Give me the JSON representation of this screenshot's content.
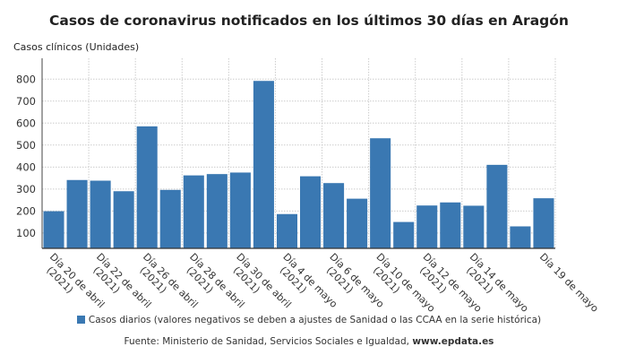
{
  "chart_data": {
    "type": "bar",
    "title": "Casos de coronavirus notificados en los últimos 30 días en Aragón",
    "ylabel": "Casos clínicos (Unidades)",
    "xlabel": "",
    "ylim": [
      30,
      895
    ],
    "yticks": [
      100,
      200,
      300,
      400,
      500,
      600,
      700,
      800
    ],
    "grid": true,
    "legend_position": "bottom",
    "bar_color": "#3a78b2",
    "categories": [
      "Día 20 de abril (2021)",
      "",
      "Día 22 de abril (2021)",
      "",
      "Día 26 de abril (2021)",
      "",
      "Día 28 de abril (2021)",
      "",
      "Día 30 de abril (2021)",
      "",
      "Día 4 de mayo (2021)",
      "",
      "Día 6 de mayo (2021)",
      "",
      "Día 10 de mayo (2021)",
      "",
      "Día 12 de mayo (2021)",
      "",
      "Día 14 de mayo (2021)",
      "",
      "",
      "Día 19 de mayo"
    ],
    "tick_labels": [
      {
        "index": 0,
        "line1": "Día 20 de abril",
        "line2": "(2021)"
      },
      {
        "index": 2,
        "line1": "Día 22 de abril",
        "line2": "(2021)"
      },
      {
        "index": 4,
        "line1": "Día 26 de abril",
        "line2": "(2021)"
      },
      {
        "index": 6,
        "line1": "Día 28 de abril",
        "line2": "(2021)"
      },
      {
        "index": 8,
        "line1": "Día 30 de abril",
        "line2": "(2021)"
      },
      {
        "index": 10,
        "line1": "Día 4 de mayo",
        "line2": "(2021)"
      },
      {
        "index": 12,
        "line1": "Día 6 de mayo",
        "line2": "(2021)"
      },
      {
        "index": 14,
        "line1": "Día 10 de mayo",
        "line2": "(2021)"
      },
      {
        "index": 16,
        "line1": "Día 12 de mayo",
        "line2": "(2021)"
      },
      {
        "index": 18,
        "line1": "Día 14 de mayo",
        "line2": "(2021)"
      },
      {
        "index": 21,
        "line1": "Día 19 de mayo",
        "line2": ""
      }
    ],
    "series": [
      {
        "name": "Casos diarios (valores negativos se deben a ajustes de Sanidad o las CCAA en la serie histórica)",
        "values": [
          199,
          341,
          338,
          290,
          585,
          296,
          362,
          368,
          375,
          792,
          186,
          358,
          327,
          256,
          531,
          150,
          225,
          239,
          224,
          410,
          130,
          258
        ]
      }
    ]
  },
  "source": {
    "prefix": "Fuente: Ministerio de Sanidad, Servicios Sociales e Igualdad, ",
    "site": "www.epdata.es"
  }
}
